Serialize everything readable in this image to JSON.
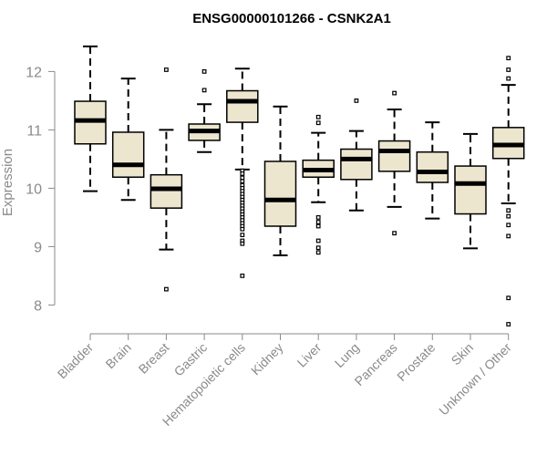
{
  "chart_data": {
    "type": "boxplot",
    "title": "ENSG00000101266 - CSNK2A1",
    "xlabel": "",
    "ylabel": "Expression",
    "ylim": [
      7.6,
      12.6
    ],
    "yticks": [
      8,
      9,
      10,
      11,
      12
    ],
    "box_color": "#ede6cf",
    "categories": [
      "Bladder",
      "Brain",
      "Breast",
      "Gastric",
      "Hematopoietic cells",
      "Kidney",
      "Liver",
      "Lung",
      "Pancreas",
      "Prostate",
      "Skin",
      "Unknown / Other"
    ],
    "boxes": [
      {
        "name": "Bladder",
        "q1": 10.76,
        "median": 11.16,
        "q3": 11.49,
        "whisker_low": 9.95,
        "whisker_high": 12.43,
        "outliers": []
      },
      {
        "name": "Brain",
        "q1": 10.19,
        "median": 10.4,
        "q3": 10.96,
        "whisker_low": 9.8,
        "whisker_high": 11.88,
        "outliers": []
      },
      {
        "name": "Breast",
        "q1": 9.66,
        "median": 9.99,
        "q3": 10.23,
        "whisker_low": 8.95,
        "whisker_high": 11.0,
        "outliers": [
          8.27,
          12.03
        ]
      },
      {
        "name": "Gastric",
        "q1": 10.82,
        "median": 10.98,
        "q3": 11.1,
        "whisker_low": 10.62,
        "whisker_high": 11.44,
        "outliers": [
          11.68,
          12.0
        ]
      },
      {
        "name": "Hematopoietic cells",
        "q1": 11.13,
        "median": 11.49,
        "q3": 11.67,
        "whisker_low": 10.32,
        "whisker_high": 12.05,
        "outliers": [
          10.3,
          10.25,
          10.18,
          10.12,
          10.05,
          10.0,
          9.95,
          9.9,
          9.85,
          9.8,
          9.75,
          9.7,
          9.65,
          9.6,
          9.55,
          9.5,
          9.45,
          9.4,
          9.35,
          9.3,
          9.2,
          9.1,
          9.05,
          8.5
        ]
      },
      {
        "name": "Kidney",
        "q1": 9.35,
        "median": 9.8,
        "q3": 10.46,
        "whisker_low": 8.85,
        "whisker_high": 11.4,
        "outliers": []
      },
      {
        "name": "Liver",
        "q1": 10.19,
        "median": 10.31,
        "q3": 10.48,
        "whisker_low": 9.76,
        "whisker_high": 10.95,
        "outliers": [
          11.12,
          11.22,
          9.5,
          9.42,
          9.35,
          9.1,
          8.98,
          8.9
        ]
      },
      {
        "name": "Lung",
        "q1": 10.15,
        "median": 10.5,
        "q3": 10.67,
        "whisker_low": 9.62,
        "whisker_high": 10.98,
        "outliers": [
          11.5
        ]
      },
      {
        "name": "Pancreas",
        "q1": 10.29,
        "median": 10.64,
        "q3": 10.81,
        "whisker_low": 9.68,
        "whisker_high": 11.35,
        "outliers": [
          11.63,
          9.23
        ]
      },
      {
        "name": "Prostate",
        "q1": 10.1,
        "median": 10.28,
        "q3": 10.62,
        "whisker_low": 9.48,
        "whisker_high": 11.13,
        "outliers": []
      },
      {
        "name": "Skin",
        "q1": 9.56,
        "median": 10.08,
        "q3": 10.38,
        "whisker_low": 8.97,
        "whisker_high": 10.93,
        "outliers": []
      },
      {
        "name": "Unknown / Other",
        "q1": 10.51,
        "median": 10.74,
        "q3": 11.04,
        "whisker_low": 9.74,
        "whisker_high": 11.77,
        "outliers": [
          12.23,
          12.03,
          11.88,
          9.62,
          9.52,
          9.37,
          9.18,
          8.12,
          7.67
        ]
      }
    ]
  }
}
